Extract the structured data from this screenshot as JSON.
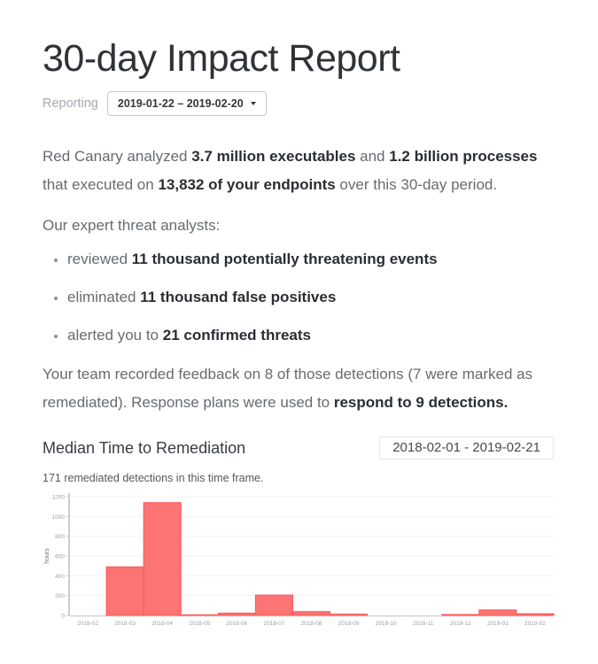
{
  "page": {
    "title": "30-day Impact Report"
  },
  "reporting": {
    "label": "Reporting",
    "range": "2019-01-22 – 2019-02-20"
  },
  "intro": {
    "segments": [
      {
        "t": "Red Canary analyzed ",
        "b": false
      },
      {
        "t": "3.7 million executables",
        "b": true
      },
      {
        "t": " and ",
        "b": false
      },
      {
        "t": "1.2 billion processes",
        "b": true
      },
      {
        "t": " that executed on ",
        "b": false
      },
      {
        "t": "13,832 of your endpoints",
        "b": true
      },
      {
        "t": " over this 30-day period.",
        "b": false
      }
    ]
  },
  "analysts_intro": "Our expert threat analysts:",
  "bullets": [
    {
      "segments": [
        {
          "t": "reviewed ",
          "b": false
        },
        {
          "t": "11 thousand potentially threatening events",
          "b": true
        }
      ]
    },
    {
      "segments": [
        {
          "t": "eliminated ",
          "b": false
        },
        {
          "t": "11 thousand false positives",
          "b": true
        }
      ]
    },
    {
      "segments": [
        {
          "t": "alerted you to ",
          "b": false
        },
        {
          "t": "21 confirmed threats",
          "b": true
        }
      ]
    }
  ],
  "feedback": {
    "segments": [
      {
        "t": "Your team recorded feedback on 8 of those detections (7 were marked as remediated). Response plans were used to ",
        "b": false
      },
      {
        "t": "respond to 9 detections.",
        "b": true
      }
    ]
  },
  "remediation": {
    "heading": "Median Time to Remediation",
    "date_range": "2018-02-01 - 2019-02-21",
    "note": "171 remediated detections in this time frame."
  },
  "chart_data": {
    "type": "bar",
    "title": "Median Time to Remediation",
    "categories": [
      "2018-02",
      "2018-03",
      "2018-04",
      "2018-05",
      "2018-06",
      "2018-07",
      "2018-08",
      "2018-09",
      "2018-10",
      "2018-11",
      "2018-12",
      "2019-01",
      "2019-02"
    ],
    "values": [
      0,
      490,
      1140,
      5,
      22,
      205,
      38,
      12,
      0,
      0,
      8,
      55,
      16
    ],
    "xlabel": "",
    "ylabel": "hours",
    "ylim": [
      0,
      1200
    ],
    "yticks": [
      0,
      200,
      400,
      600,
      800,
      1000,
      1200
    ],
    "grid": true,
    "legend": "none",
    "bar_fill": "#fc7474",
    "bar_border": "#fb5858",
    "grid_color": "#f3f3f3",
    "axis_color": "#c9ced1",
    "baseline_color": "#d6d6d6",
    "tick_label_color": "#9aa0a4",
    "ylabel_color": "#6b7075"
  }
}
